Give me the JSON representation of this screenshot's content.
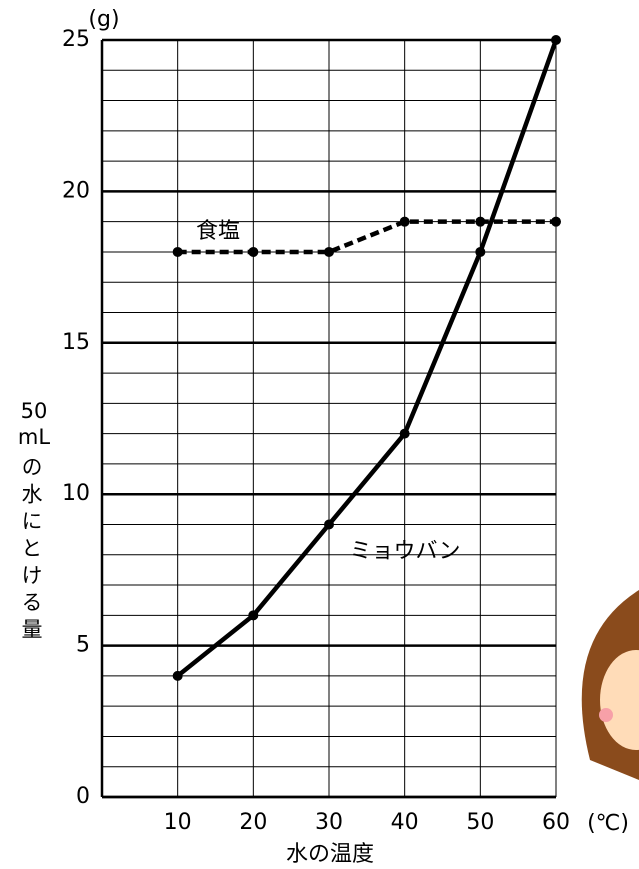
{
  "chart_data": {
    "type": "line",
    "x_label": "水の温度",
    "x_unit": "(℃)",
    "y_label_unit": "50 mL",
    "y_label": "の水にとける量",
    "y_unit": "(g)",
    "x": [
      10,
      20,
      30,
      40,
      50,
      60
    ],
    "series": [
      {
        "name": "食塩",
        "color": "#000000",
        "style": "dotted",
        "values": [
          18,
          18,
          18,
          19,
          19,
          19
        ]
      },
      {
        "name": "ミョウバン",
        "color": "#000000",
        "style": "solid",
        "values": [
          4,
          6,
          9,
          12,
          18,
          25
        ]
      }
    ],
    "xlim": [
      0,
      60
    ],
    "xticks": [
      10,
      20,
      30,
      40,
      50,
      60
    ],
    "ylim": [
      0,
      25
    ],
    "yticks": [
      0,
      5,
      10,
      15,
      20,
      25
    ],
    "y_minor_gridlines": [
      1,
      2,
      3,
      4,
      6,
      7,
      8,
      9,
      11,
      12,
      13,
      14,
      16,
      17,
      18,
      19,
      21,
      22,
      23,
      24
    ],
    "grid": true,
    "legend": "inline"
  }
}
